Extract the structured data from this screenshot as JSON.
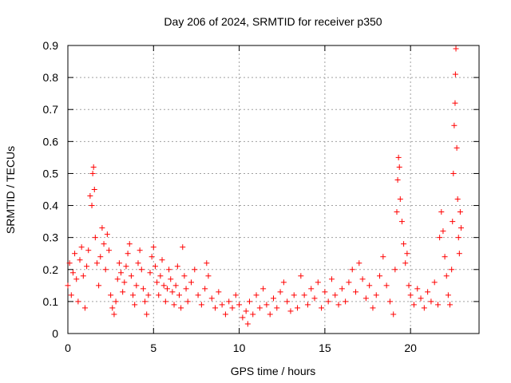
{
  "chart_data": {
    "type": "scatter",
    "title": "Day 206 of 2024, SRMTID for receiver p350",
    "xlabel": "GPS time / hours",
    "ylabel": "SRMTID / TECUs",
    "xlim": [
      0,
      24
    ],
    "ylim": [
      0,
      0.9
    ],
    "xticks": [
      0,
      5,
      10,
      15,
      20
    ],
    "yticks": [
      0,
      0.1,
      0.2,
      0.3,
      0.4,
      0.5,
      0.6,
      0.7,
      0.8,
      0.9
    ],
    "xtick_labels": [
      "0",
      "5",
      "10",
      "15",
      "20"
    ],
    "ytick_labels": [
      "0",
      "0.1",
      "0.2",
      "0.3",
      "0.4",
      "0.5",
      "0.6",
      "0.7",
      "0.8",
      "0.9"
    ],
    "grid": true,
    "marker": "+",
    "marker_color": "#ff0000",
    "series": [
      {
        "name": "SRMTID",
        "points": [
          [
            0.0,
            0.15
          ],
          [
            0.1,
            0.22
          ],
          [
            0.2,
            0.12
          ],
          [
            0.3,
            0.19
          ],
          [
            0.4,
            0.25
          ],
          [
            0.5,
            0.17
          ],
          [
            0.6,
            0.1
          ],
          [
            0.7,
            0.23
          ],
          [
            0.8,
            0.27
          ],
          [
            0.9,
            0.18
          ],
          [
            1.0,
            0.08
          ],
          [
            1.1,
            0.21
          ],
          [
            1.2,
            0.26
          ],
          [
            1.3,
            0.43
          ],
          [
            1.4,
            0.4
          ],
          [
            1.45,
            0.5
          ],
          [
            1.5,
            0.52
          ],
          [
            1.55,
            0.45
          ],
          [
            1.6,
            0.3
          ],
          [
            1.7,
            0.22
          ],
          [
            1.8,
            0.15
          ],
          [
            1.9,
            0.24
          ],
          [
            2.0,
            0.33
          ],
          [
            2.1,
            0.28
          ],
          [
            2.2,
            0.2
          ],
          [
            2.3,
            0.31
          ],
          [
            2.4,
            0.26
          ],
          [
            2.5,
            0.12
          ],
          [
            2.6,
            0.08
          ],
          [
            2.7,
            0.06
          ],
          [
            2.8,
            0.1
          ],
          [
            2.9,
            0.17
          ],
          [
            3.0,
            0.22
          ],
          [
            3.1,
            0.19
          ],
          [
            3.2,
            0.13
          ],
          [
            3.3,
            0.16
          ],
          [
            3.4,
            0.21
          ],
          [
            3.5,
            0.25
          ],
          [
            3.6,
            0.28
          ],
          [
            3.7,
            0.18
          ],
          [
            3.8,
            0.12
          ],
          [
            3.9,
            0.09
          ],
          [
            4.0,
            0.15
          ],
          [
            4.1,
            0.22
          ],
          [
            4.2,
            0.26
          ],
          [
            4.3,
            0.2
          ],
          [
            4.4,
            0.14
          ],
          [
            4.5,
            0.1
          ],
          [
            4.6,
            0.06
          ],
          [
            4.7,
            0.12
          ],
          [
            4.8,
            0.19
          ],
          [
            4.9,
            0.24
          ],
          [
            5.0,
            0.27
          ],
          [
            5.1,
            0.21
          ],
          [
            5.2,
            0.16
          ],
          [
            5.3,
            0.12
          ],
          [
            5.4,
            0.18
          ],
          [
            5.5,
            0.23
          ],
          [
            5.6,
            0.15
          ],
          [
            5.7,
            0.1
          ],
          [
            5.8,
            0.14
          ],
          [
            5.9,
            0.2
          ],
          [
            6.0,
            0.17
          ],
          [
            6.1,
            0.13
          ],
          [
            6.2,
            0.09
          ],
          [
            6.3,
            0.15
          ],
          [
            6.4,
            0.21
          ],
          [
            6.5,
            0.12
          ],
          [
            6.6,
            0.08
          ],
          [
            6.7,
            0.27
          ],
          [
            6.8,
            0.18
          ],
          [
            6.9,
            0.14
          ],
          [
            7.0,
            0.1
          ],
          [
            7.2,
            0.16
          ],
          [
            7.4,
            0.2
          ],
          [
            7.6,
            0.12
          ],
          [
            7.8,
            0.09
          ],
          [
            8.0,
            0.14
          ],
          [
            8.1,
            0.22
          ],
          [
            8.2,
            0.18
          ],
          [
            8.4,
            0.11
          ],
          [
            8.6,
            0.08
          ],
          [
            8.8,
            0.13
          ],
          [
            9.0,
            0.09
          ],
          [
            9.2,
            0.06
          ],
          [
            9.4,
            0.1
          ],
          [
            9.6,
            0.08
          ],
          [
            9.8,
            0.12
          ],
          [
            10.0,
            0.09
          ],
          [
            10.2,
            0.05
          ],
          [
            10.4,
            0.07
          ],
          [
            10.5,
            0.03
          ],
          [
            10.6,
            0.1
          ],
          [
            10.8,
            0.06
          ],
          [
            11.0,
            0.12
          ],
          [
            11.2,
            0.08
          ],
          [
            11.4,
            0.14
          ],
          [
            11.6,
            0.09
          ],
          [
            11.8,
            0.06
          ],
          [
            12.0,
            0.11
          ],
          [
            12.2,
            0.08
          ],
          [
            12.4,
            0.13
          ],
          [
            12.6,
            0.16
          ],
          [
            12.8,
            0.1
          ],
          [
            13.0,
            0.07
          ],
          [
            13.2,
            0.12
          ],
          [
            13.4,
            0.08
          ],
          [
            13.6,
            0.18
          ],
          [
            13.8,
            0.12
          ],
          [
            14.0,
            0.09
          ],
          [
            14.2,
            0.14
          ],
          [
            14.4,
            0.11
          ],
          [
            14.6,
            0.16
          ],
          [
            14.8,
            0.08
          ],
          [
            15.0,
            0.13
          ],
          [
            15.2,
            0.1
          ],
          [
            15.4,
            0.17
          ],
          [
            15.6,
            0.12
          ],
          [
            15.8,
            0.09
          ],
          [
            16.0,
            0.14
          ],
          [
            16.2,
            0.1
          ],
          [
            16.4,
            0.16
          ],
          [
            16.6,
            0.2
          ],
          [
            16.8,
            0.13
          ],
          [
            17.0,
            0.22
          ],
          [
            17.2,
            0.17
          ],
          [
            17.4,
            0.11
          ],
          [
            17.6,
            0.15
          ],
          [
            17.8,
            0.08
          ],
          [
            18.0,
            0.12
          ],
          [
            18.2,
            0.18
          ],
          [
            18.4,
            0.24
          ],
          [
            18.6,
            0.15
          ],
          [
            18.8,
            0.1
          ],
          [
            19.0,
            0.06
          ],
          [
            19.1,
            0.2
          ],
          [
            19.2,
            0.38
          ],
          [
            19.25,
            0.48
          ],
          [
            19.3,
            0.55
          ],
          [
            19.35,
            0.52
          ],
          [
            19.4,
            0.42
          ],
          [
            19.5,
            0.35
          ],
          [
            19.6,
            0.28
          ],
          [
            19.7,
            0.22
          ],
          [
            19.8,
            0.25
          ],
          [
            19.9,
            0.15
          ],
          [
            20.0,
            0.12
          ],
          [
            20.2,
            0.09
          ],
          [
            20.4,
            0.14
          ],
          [
            20.6,
            0.11
          ],
          [
            20.8,
            0.08
          ],
          [
            21.0,
            0.13
          ],
          [
            21.2,
            0.1
          ],
          [
            21.4,
            0.16
          ],
          [
            21.6,
            0.09
          ],
          [
            21.7,
            0.3
          ],
          [
            21.8,
            0.38
          ],
          [
            21.9,
            0.32
          ],
          [
            22.0,
            0.24
          ],
          [
            22.1,
            0.18
          ],
          [
            22.2,
            0.12
          ],
          [
            22.3,
            0.09
          ],
          [
            22.4,
            0.2
          ],
          [
            22.45,
            0.35
          ],
          [
            22.5,
            0.5
          ],
          [
            22.55,
            0.65
          ],
          [
            22.6,
            0.72
          ],
          [
            22.62,
            0.81
          ],
          [
            22.65,
            0.89
          ],
          [
            22.7,
            0.58
          ],
          [
            22.75,
            0.42
          ],
          [
            22.8,
            0.3
          ],
          [
            22.85,
            0.25
          ],
          [
            22.9,
            0.38
          ],
          [
            22.95,
            0.33
          ]
        ]
      }
    ]
  }
}
